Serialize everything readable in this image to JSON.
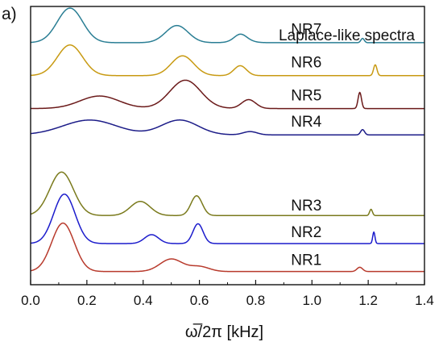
{
  "panel_label": "a)",
  "chart_data": {
    "type": "line",
    "title": "",
    "annotation": "Laplace-like spectra",
    "xlabel": "ω̅/2π [kHz]",
    "ylabel": "",
    "xlim": [
      0.0,
      1.4
    ],
    "xticks": [
      "0.0",
      "0.2",
      "0.4",
      "0.6",
      "0.8",
      "1.0",
      "1.2",
      "1.4"
    ],
    "y_ticks_shown": false,
    "grid": false,
    "series": [
      {
        "name": "NR7",
        "color": "#2a7e94",
        "baseline": 7.35,
        "peaks": [
          [
            0.14,
            0.045,
            1.05
          ],
          [
            0.52,
            0.04,
            0.52
          ],
          [
            0.745,
            0.02,
            0.14
          ],
          [
            0.75,
            0.03,
            0.12
          ],
          [
            1.18,
            0.006,
            0.13
          ]
        ]
      },
      {
        "name": "NR6",
        "color": "#c89a12",
        "baseline": 6.35,
        "peaks": [
          [
            0.14,
            0.045,
            0.93
          ],
          [
            0.54,
            0.04,
            0.6
          ],
          [
            0.745,
            0.022,
            0.3
          ],
          [
            1.225,
            0.006,
            0.33
          ]
        ]
      },
      {
        "name": "NR5",
        "color": "#6b1a1a",
        "baseline": 5.35,
        "peaks": [
          [
            0.245,
            0.07,
            0.38
          ],
          [
            0.55,
            0.055,
            0.86
          ],
          [
            0.775,
            0.025,
            0.27
          ],
          [
            1.17,
            0.006,
            0.49
          ]
        ]
      },
      {
        "name": "NR4",
        "color": "#1c1c88",
        "baseline": 4.55,
        "peaks": [
          [
            0.21,
            0.095,
            0.45
          ],
          [
            0.53,
            0.065,
            0.45
          ],
          [
            0.78,
            0.025,
            0.1
          ],
          [
            1.18,
            0.007,
            0.16
          ]
        ]
      },
      {
        "name": "NR3",
        "color": "#7a7a1c",
        "baseline": 2.1,
        "peaks": [
          [
            0.11,
            0.042,
            1.32
          ],
          [
            0.39,
            0.035,
            0.43
          ],
          [
            0.59,
            0.02,
            0.6
          ],
          [
            1.21,
            0.005,
            0.19
          ]
        ]
      },
      {
        "name": "NR2",
        "color": "#1c1ccc",
        "baseline": 1.25,
        "peaks": [
          [
            0.12,
            0.038,
            1.5
          ],
          [
            0.43,
            0.025,
            0.27
          ],
          [
            0.595,
            0.018,
            0.6
          ],
          [
            1.22,
            0.004,
            0.35
          ]
        ]
      },
      {
        "name": "NR1",
        "color": "#b83a2c",
        "baseline": 0.4,
        "peaks": [
          [
            0.115,
            0.04,
            1.47
          ],
          [
            0.5,
            0.04,
            0.38
          ],
          [
            0.6,
            0.035,
            0.15
          ],
          [
            1.17,
            0.01,
            0.13
          ]
        ]
      }
    ]
  }
}
